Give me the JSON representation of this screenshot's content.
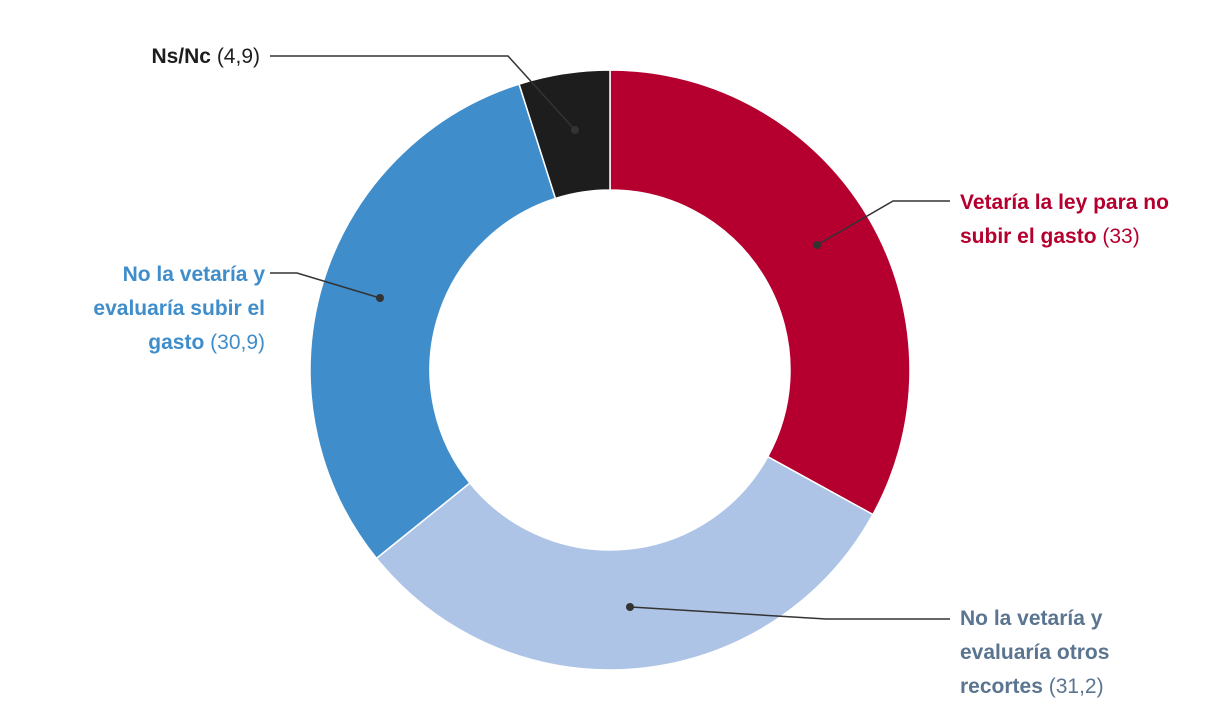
{
  "colors": {
    "vetaria": "#b5002f",
    "no_otros": "#adc4e6",
    "no_subir": "#3f8dca",
    "nsnc": "#1d1d1d",
    "no_otros_label": "#5b7590",
    "leader": "#333333"
  },
  "chart_data": {
    "type": "pie",
    "donut": true,
    "unit": "%",
    "slices": [
      {
        "key": "vetaria",
        "label": "Vetaría la ley para no subir el gasto",
        "label_lines": [
          "Vetaría la ley para no",
          "subir el gasto"
        ],
        "value": 33,
        "value_text": "(33)",
        "color": "#b5002f"
      },
      {
        "key": "no_otros",
        "label": "No la vetaría y evaluaría otros recortes",
        "label_lines": [
          "No la vetaría y",
          "evaluaría otros",
          "recortes"
        ],
        "value": 31.2,
        "value_text": "(31,2)",
        "color": "#adc4e6"
      },
      {
        "key": "no_subir",
        "label": "No la vetaría y evaluaría subir el gasto",
        "label_lines": [
          "No la vetaría y",
          "evaluaría subir el",
          "gasto"
        ],
        "value": 30.9,
        "value_text": "(30,9)",
        "color": "#3f8dca"
      },
      {
        "key": "nsnc",
        "label": "Ns/Nc",
        "label_lines": [
          "Ns/Nc"
        ],
        "value": 4.9,
        "value_text": "(4,9)",
        "color": "#1d1d1d"
      }
    ]
  }
}
